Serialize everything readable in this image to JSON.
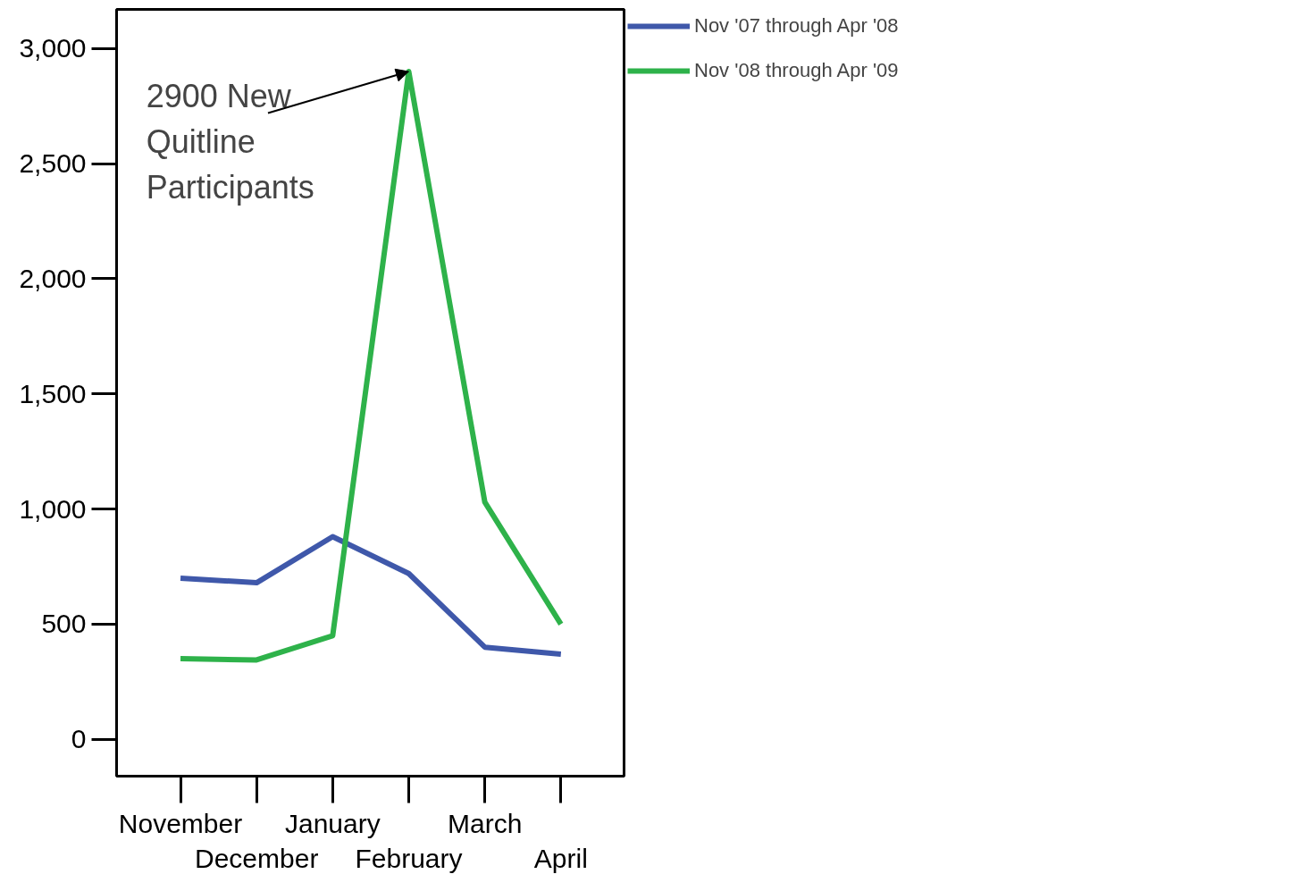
{
  "chart_data": {
    "type": "line",
    "categories": [
      "November",
      "December",
      "January",
      "February",
      "March",
      "April"
    ],
    "series": [
      {
        "name": "Nov '07 through Apr '08",
        "color": "#3f58aa",
        "values": [
          700,
          680,
          880,
          720,
          400,
          370
        ]
      },
      {
        "name": "Nov '08 through Apr '09",
        "color": "#2eb24a",
        "values": [
          350,
          345,
          450,
          2900,
          1030,
          500
        ]
      }
    ],
    "ylim": [
      -160,
      3170
    ],
    "yticks": [
      {
        "value": 0,
        "label": "0"
      },
      {
        "value": 500,
        "label": "500"
      },
      {
        "value": 1000,
        "label": "1,000"
      },
      {
        "value": 1500,
        "label": "1,500"
      },
      {
        "value": 2000,
        "label": "2,000"
      },
      {
        "value": 2500,
        "label": "2,500"
      },
      {
        "value": 3000,
        "label": "3,000"
      }
    ],
    "annotations": [
      {
        "text": "2900 New\nQuitline\nParticipants",
        "x": "February",
        "y": 2900
      }
    ],
    "legend": "right",
    "grid": false,
    "marker": "none",
    "line_style": "solid"
  }
}
